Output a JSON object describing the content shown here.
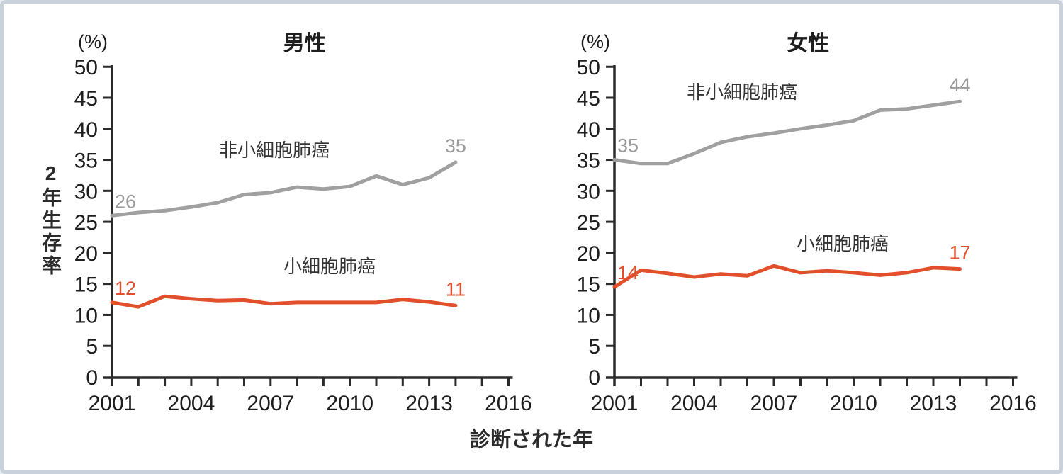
{
  "page": {
    "background": "#ffffff",
    "frame_border_color": "#c9d1dd",
    "axis_color": "#2b2b2b",
    "gray_series_color": "#a0a0a0",
    "gray_label_color": "#9b9b9b",
    "orange_series_color": "#e2502b"
  },
  "shared": {
    "y_axis_unit": "(%)",
    "y_axis_title": "2年生存率",
    "x_axis_title": "診断された年",
    "y_ticks": [
      0,
      5,
      10,
      15,
      20,
      25,
      30,
      35,
      40,
      45,
      50
    ],
    "x_tick_years": [
      2001,
      2002,
      2003,
      2004,
      2005,
      2006,
      2007,
      2008,
      2009,
      2010,
      2011,
      2012,
      2013,
      2014,
      2015,
      2016
    ],
    "x_label_years": [
      2001,
      2004,
      2007,
      2010,
      2013,
      2016
    ]
  },
  "chart_data": [
    {
      "type": "line",
      "title": "男性",
      "xlabel": "診断された年",
      "ylabel": "2年生存率 (%)",
      "xlim": [
        2001,
        2016
      ],
      "ylim": [
        0,
        50
      ],
      "grid": false,
      "x": [
        2001,
        2002,
        2003,
        2004,
        2005,
        2006,
        2007,
        2008,
        2009,
        2010,
        2011,
        2012,
        2013,
        2014
      ],
      "series": [
        {
          "name": "非小細胞肺癌",
          "color": "#a0a0a0",
          "label_color": "#9b9b9b",
          "start_label": "26",
          "end_label": "35",
          "values": [
            26,
            26.5,
            26.8,
            27.4,
            28.1,
            29.4,
            29.7,
            30.6,
            30.3,
            30.7,
            32.4,
            31,
            32.1,
            34.6
          ]
        },
        {
          "name": "小細胞肺癌",
          "color": "#e2502b",
          "label_color": "#e2502b",
          "start_label": "12",
          "end_label": "11",
          "values": [
            12,
            11.3,
            13,
            12.6,
            12.3,
            12.4,
            11.8,
            12,
            12,
            12,
            12,
            12.5,
            12.1,
            11.5
          ]
        }
      ]
    },
    {
      "type": "line",
      "title": "女性",
      "xlabel": "診断された年",
      "ylabel": "2年生存率 (%)",
      "xlim": [
        2001,
        2016
      ],
      "ylim": [
        0,
        50
      ],
      "grid": false,
      "x": [
        2001,
        2002,
        2003,
        2004,
        2005,
        2006,
        2007,
        2008,
        2009,
        2010,
        2011,
        2012,
        2013,
        2014
      ],
      "series": [
        {
          "name": "非小細胞肺癌",
          "color": "#a0a0a0",
          "label_color": "#9b9b9b",
          "start_label": "35",
          "end_label": "44",
          "values": [
            35,
            34.4,
            34.4,
            36,
            37.8,
            38.7,
            39.3,
            40,
            40.6,
            41.3,
            43,
            43.2,
            43.8,
            44.4
          ]
        },
        {
          "name": "小細胞肺癌",
          "color": "#e2502b",
          "label_color": "#e2502b",
          "start_label": "14",
          "end_label": "17",
          "values": [
            14.5,
            17.2,
            16.7,
            16.1,
            16.6,
            16.3,
            17.9,
            16.8,
            17.1,
            16.8,
            16.4,
            16.8,
            17.6,
            17.4
          ]
        }
      ]
    }
  ]
}
